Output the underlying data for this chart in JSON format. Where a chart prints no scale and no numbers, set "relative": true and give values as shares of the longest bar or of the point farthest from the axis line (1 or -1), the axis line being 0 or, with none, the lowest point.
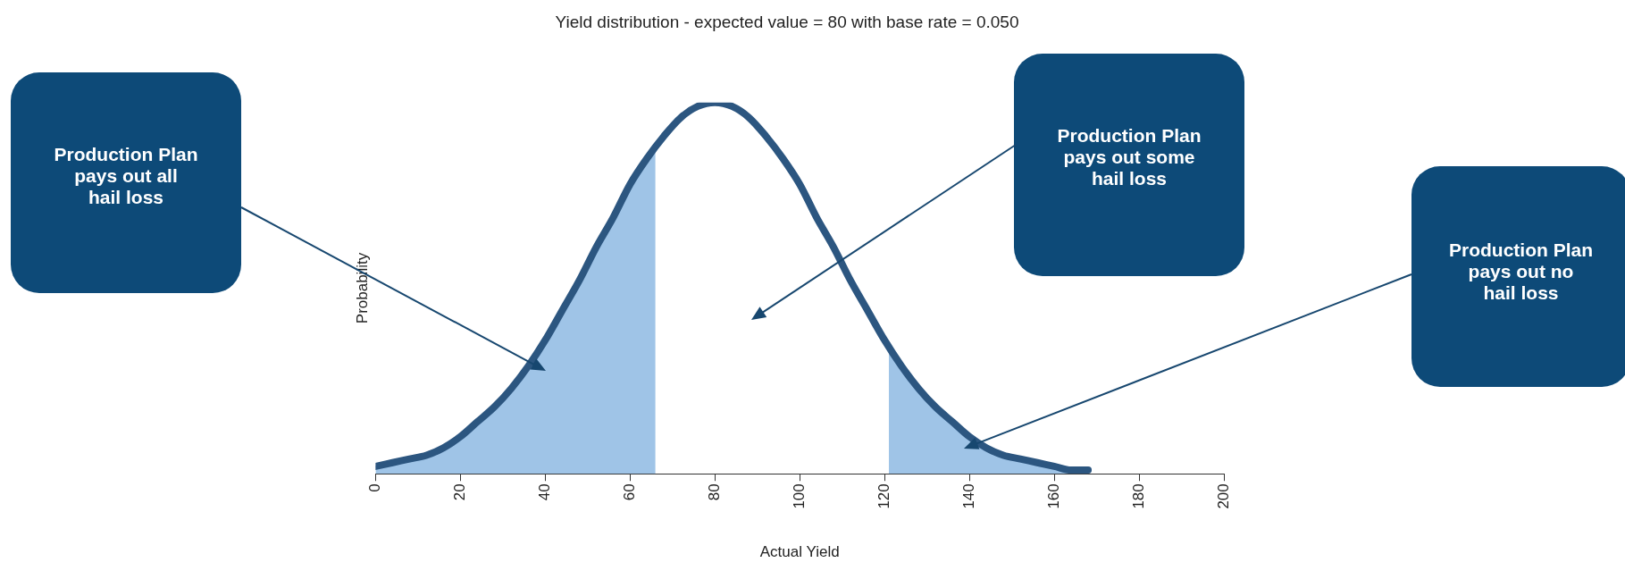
{
  "chart_data": {
    "type": "line",
    "title": "Yield distribution - expected value = 80 with base rate = 0.050",
    "xlabel": "Actual Yield",
    "ylabel": "Probability",
    "relative": true,
    "xlim": [
      0,
      200
    ],
    "xticks": [
      0,
      20,
      40,
      60,
      80,
      100,
      120,
      140,
      160,
      180,
      200
    ],
    "grid": false,
    "legend": false,
    "marker": "none",
    "series": [
      {
        "type": "area",
        "color": "#9fc4e7",
        "x": [
          0,
          4,
          8,
          12,
          16,
          20,
          24,
          28,
          32,
          36,
          40,
          44,
          48,
          52,
          56,
          60,
          64,
          66
        ],
        "values": [
          0.02,
          0.03,
          0.04,
          0.05,
          0.07,
          0.1,
          0.14,
          0.18,
          0.23,
          0.29,
          0.36,
          0.44,
          0.52,
          0.61,
          0.69,
          0.78,
          0.85,
          0.88
        ]
      },
      {
        "type": "area",
        "color": "#9fc4e7",
        "x": [
          121,
          124,
          128,
          132,
          136,
          140,
          144,
          148,
          152,
          156,
          160,
          164,
          168
        ],
        "values": [
          0.34,
          0.29,
          0.23,
          0.18,
          0.14,
          0.1,
          0.07,
          0.05,
          0.04,
          0.03,
          0.02,
          0.01,
          0.01
        ]
      },
      {
        "type": "line",
        "color": "#2c5680",
        "x": [
          0,
          4,
          8,
          12,
          16,
          20,
          24,
          28,
          32,
          36,
          40,
          44,
          48,
          52,
          56,
          60,
          64,
          68,
          72,
          76,
          80,
          84,
          88,
          92,
          96,
          100,
          104,
          108,
          112,
          116,
          120,
          124,
          128,
          132,
          136,
          140,
          144,
          148,
          152,
          156,
          160,
          164,
          168
        ],
        "values": [
          0.02,
          0.03,
          0.04,
          0.05,
          0.07,
          0.1,
          0.14,
          0.18,
          0.23,
          0.29,
          0.36,
          0.44,
          0.52,
          0.61,
          0.69,
          0.78,
          0.85,
          0.91,
          0.96,
          0.99,
          1,
          0.99,
          0.96,
          0.91,
          0.85,
          0.78,
          0.69,
          0.61,
          0.52,
          0.44,
          0.36,
          0.29,
          0.23,
          0.18,
          0.14,
          0.1,
          0.07,
          0.05,
          0.04,
          0.03,
          0.02,
          0.01,
          0.01
        ]
      }
    ],
    "annotations": [
      "Production Plan\npays out all\nhail loss",
      "Production Plan\npays out some\nhail loss",
      "Production Plan\npays out no\nhail loss"
    ]
  }
}
